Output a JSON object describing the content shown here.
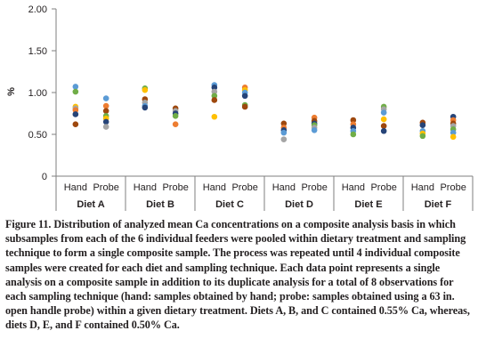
{
  "chart_data": {
    "type": "scatter",
    "ylabel": "%",
    "ylim": [
      0,
      2.0
    ],
    "yticks": [
      "0",
      "0.50",
      "1.00",
      "1.50",
      "2.00"
    ],
    "ytick_values": [
      0,
      0.5,
      1.0,
      1.5,
      2.0
    ],
    "groups": [
      "Diet A",
      "Diet B",
      "Diet C",
      "Diet D",
      "Diet E",
      "Diet F"
    ],
    "techniques": [
      "Hand",
      "Probe"
    ],
    "series_colors": [
      "#5b9bd5",
      "#ed7d31",
      "#a5a5a5",
      "#ffc000",
      "#264478",
      "#70ad47",
      "#9e480e"
    ],
    "points": [
      {
        "group": "Diet A",
        "technique": "Hand",
        "values": [
          {
            "y": 1.07,
            "c": 0
          },
          {
            "y": 1.01,
            "c": 5
          },
          {
            "y": 0.83,
            "c": 3
          },
          {
            "y": 0.81,
            "c": 2
          },
          {
            "y": 0.79,
            "c": 1
          },
          {
            "y": 0.74,
            "c": 4
          },
          {
            "y": 0.62,
            "c": 6
          }
        ]
      },
      {
        "group": "Diet A",
        "technique": "Probe",
        "values": [
          {
            "y": 0.93,
            "c": 0
          },
          {
            "y": 0.84,
            "c": 1
          },
          {
            "y": 0.78,
            "c": 6
          },
          {
            "y": 0.72,
            "c": 5
          },
          {
            "y": 0.69,
            "c": 3
          },
          {
            "y": 0.65,
            "c": 4
          },
          {
            "y": 0.59,
            "c": 2
          }
        ]
      },
      {
        "group": "Diet B",
        "technique": "Hand",
        "values": [
          {
            "y": 1.05,
            "c": 5
          },
          {
            "y": 1.03,
            "c": 3
          },
          {
            "y": 0.92,
            "c": 6
          },
          {
            "y": 0.88,
            "c": 2
          },
          {
            "y": 0.84,
            "c": 0
          },
          {
            "y": 0.82,
            "c": 4
          }
        ]
      },
      {
        "group": "Diet B",
        "technique": "Probe",
        "values": [
          {
            "y": 0.81,
            "c": 6
          },
          {
            "y": 0.78,
            "c": 2
          },
          {
            "y": 0.75,
            "c": 4
          },
          {
            "y": 0.72,
            "c": 5
          },
          {
            "y": 0.62,
            "c": 1
          }
        ]
      },
      {
        "group": "Diet C",
        "technique": "Hand",
        "values": [
          {
            "y": 1.09,
            "c": 0
          },
          {
            "y": 1.06,
            "c": 4
          },
          {
            "y": 1.01,
            "c": 2
          },
          {
            "y": 0.96,
            "c": 5
          },
          {
            "y": 0.91,
            "c": 6
          },
          {
            "y": 0.71,
            "c": 3
          }
        ]
      },
      {
        "group": "Diet C",
        "technique": "Probe",
        "values": [
          {
            "y": 1.06,
            "c": 1
          },
          {
            "y": 1.03,
            "c": 3
          },
          {
            "y": 1.0,
            "c": 0
          },
          {
            "y": 0.96,
            "c": 4
          },
          {
            "y": 0.85,
            "c": 5
          },
          {
            "y": 0.83,
            "c": 6
          }
        ]
      },
      {
        "group": "Diet D",
        "technique": "Hand",
        "values": [
          {
            "y": 0.63,
            "c": 6
          },
          {
            "y": 0.58,
            "c": 1
          },
          {
            "y": 0.55,
            "c": 4
          },
          {
            "y": 0.52,
            "c": 0
          },
          {
            "y": 0.44,
            "c": 2
          }
        ]
      },
      {
        "group": "Diet D",
        "technique": "Probe",
        "values": [
          {
            "y": 0.7,
            "c": 1
          },
          {
            "y": 0.66,
            "c": 6
          },
          {
            "y": 0.63,
            "c": 4
          },
          {
            "y": 0.61,
            "c": 5
          },
          {
            "y": 0.58,
            "c": 2
          },
          {
            "y": 0.55,
            "c": 0
          }
        ]
      },
      {
        "group": "Diet E",
        "technique": "Hand",
        "values": [
          {
            "y": 0.67,
            "c": 6
          },
          {
            "y": 0.62,
            "c": 1
          },
          {
            "y": 0.58,
            "c": 4
          },
          {
            "y": 0.54,
            "c": 0
          },
          {
            "y": 0.5,
            "c": 5
          }
        ]
      },
      {
        "group": "Diet E",
        "technique": "Probe",
        "values": [
          {
            "y": 0.83,
            "c": 5
          },
          {
            "y": 0.8,
            "c": 2
          },
          {
            "y": 0.76,
            "c": 0
          },
          {
            "y": 0.68,
            "c": 3
          },
          {
            "y": 0.6,
            "c": 6
          },
          {
            "y": 0.54,
            "c": 4
          }
        ]
      },
      {
        "group": "Diet F",
        "technique": "Hand",
        "values": [
          {
            "y": 0.64,
            "c": 6
          },
          {
            "y": 0.61,
            "c": 4
          },
          {
            "y": 0.54,
            "c": 0
          },
          {
            "y": 0.51,
            "c": 3
          },
          {
            "y": 0.48,
            "c": 5
          }
        ]
      },
      {
        "group": "Diet F",
        "technique": "Probe",
        "values": [
          {
            "y": 0.71,
            "c": 4
          },
          {
            "y": 0.67,
            "c": 1
          },
          {
            "y": 0.63,
            "c": 6
          },
          {
            "y": 0.6,
            "c": 2
          },
          {
            "y": 0.56,
            "c": 5
          },
          {
            "y": 0.52,
            "c": 0
          },
          {
            "y": 0.47,
            "c": 3
          }
        ]
      }
    ]
  },
  "caption": "Figure 11. Distribution of analyzed mean Ca concentrations on a composite analysis basis in which subsamples from each of the 6 individual feeders were pooled within dietary treatment and sampling technique to form a single composite sample. The process was repeated until 4 individual composite samples were created for each diet and sampling technique. Each data point represents a single analysis on a composite sample in addition to its duplicate analysis for a total of 8 observations for each sampling technique (hand: samples obtained by hand; probe: samples obtained using a 63 in. open handle probe) within a given dietary treatment. Diets A, B, and C contained 0.55% Ca, whereas, diets D, E, and F contained 0.50% Ca."
}
